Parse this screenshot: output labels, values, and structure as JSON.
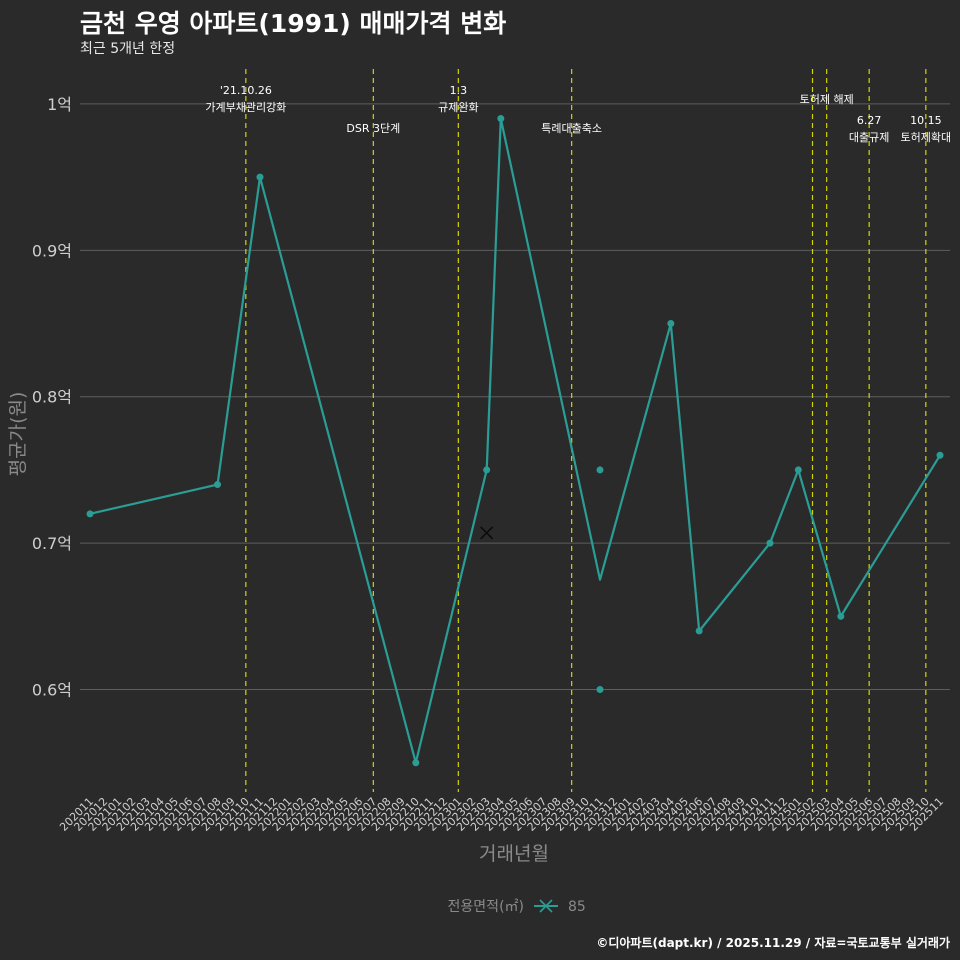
{
  "header": {
    "title": "금천 우영 아파트(1991) 매매가격 변화",
    "subtitle": "최근 5개년 한정"
  },
  "caption": "©디아파트(dapt.kr) / 2025.11.29 / 자료=국토교통부 실거래가",
  "colors": {
    "background": "#2b2a2b",
    "grid": "#5e5e5e",
    "series": "#2a9d95",
    "event_line": "#d4d400",
    "axis_text": "#cfcfcf",
    "axis_title": "#8a8a8a"
  },
  "chart_data": {
    "type": "line",
    "xlabel": "거래년월",
    "ylabel": "평균가(원)",
    "ylim": [
      0.53,
      1.03
    ],
    "yticks": [
      {
        "value": 0.6,
        "label": "0.6억"
      },
      {
        "value": 0.7,
        "label": "0.7억"
      },
      {
        "value": 0.8,
        "label": "0.8억"
      },
      {
        "value": 0.9,
        "label": "0.9억"
      },
      {
        "value": 1.0,
        "label": "1억"
      }
    ],
    "categories": [
      "202011",
      "202012",
      "202101",
      "202102",
      "202103",
      "202104",
      "202105",
      "202106",
      "202107",
      "202108",
      "202109",
      "202110",
      "202111",
      "202112",
      "202201",
      "202202",
      "202203",
      "202204",
      "202205",
      "202206",
      "202207",
      "202208",
      "202209",
      "202210",
      "202211",
      "202212",
      "202301",
      "202302",
      "202303",
      "202304",
      "202305",
      "202306",
      "202307",
      "202308",
      "202309",
      "202310",
      "202311",
      "202312",
      "202401",
      "202402",
      "202403",
      "202404",
      "202405",
      "202406",
      "202407",
      "202408",
      "202409",
      "202410",
      "202411",
      "202412",
      "202501",
      "202502",
      "202503",
      "202504",
      "202505",
      "202506",
      "202507",
      "202508",
      "202509",
      "202510",
      "202511"
    ],
    "legend": {
      "title": "전용면적(㎡)",
      "label": "85"
    },
    "series": [
      {
        "name": "85",
        "line": [
          {
            "x": "202011",
            "y": 0.72
          },
          {
            "x": "202108",
            "y": 0.74
          },
          {
            "x": "202111",
            "y": 0.95
          },
          {
            "x": "202210",
            "y": 0.55
          },
          {
            "x": "202303",
            "y": 0.75
          },
          {
            "x": "202304",
            "y": 0.99
          },
          {
            "x": "202311",
            "y": 0.675
          },
          {
            "x": "202404",
            "y": 0.85
          },
          {
            "x": "202406",
            "y": 0.64
          },
          {
            "x": "202411",
            "y": 0.7
          },
          {
            "x": "202501",
            "y": 0.75
          },
          {
            "x": "202504",
            "y": 0.65
          },
          {
            "x": "202511",
            "y": 0.76
          }
        ],
        "points": [
          {
            "x": "202011",
            "y": 0.72
          },
          {
            "x": "202108",
            "y": 0.74
          },
          {
            "x": "202111",
            "y": 0.95
          },
          {
            "x": "202210",
            "y": 0.55
          },
          {
            "x": "202303",
            "y": 0.75
          },
          {
            "x": "202304",
            "y": 0.99
          },
          {
            "x": "202311",
            "y": 0.75
          },
          {
            "x": "202311",
            "y": 0.6
          },
          {
            "x": "202404",
            "y": 0.85
          },
          {
            "x": "202406",
            "y": 0.64
          },
          {
            "x": "202411",
            "y": 0.7
          },
          {
            "x": "202501",
            "y": 0.75
          },
          {
            "x": "202504",
            "y": 0.65
          },
          {
            "x": "202511",
            "y": 0.76
          }
        ],
        "cross_markers": [
          {
            "x": 28.0,
            "y": 0.707
          }
        ]
      }
    ],
    "events": [
      {
        "x": "202110",
        "lines": [
          "'21.10.26",
          "가계부채관리강화"
        ],
        "row": 1
      },
      {
        "x": "202207",
        "lines": [
          "DSR 3단계"
        ],
        "row": 3
      },
      {
        "x": "202301",
        "lines": [
          "1.3",
          "규제완화"
        ],
        "row": 1
      },
      {
        "x": "202309",
        "lines": [
          "특례대출축소"
        ],
        "row": 3
      },
      {
        "x": "202502",
        "lines": [],
        "row": 0
      },
      {
        "x": "202503",
        "lines": [
          "토허제 해제"
        ],
        "row": 2
      },
      {
        "x": "202506",
        "lines": [
          "6.27",
          "대출규제"
        ],
        "row": 3
      },
      {
        "x": "202510",
        "lines": [
          "10.15",
          "토허제확대"
        ],
        "row": 3
      }
    ]
  }
}
